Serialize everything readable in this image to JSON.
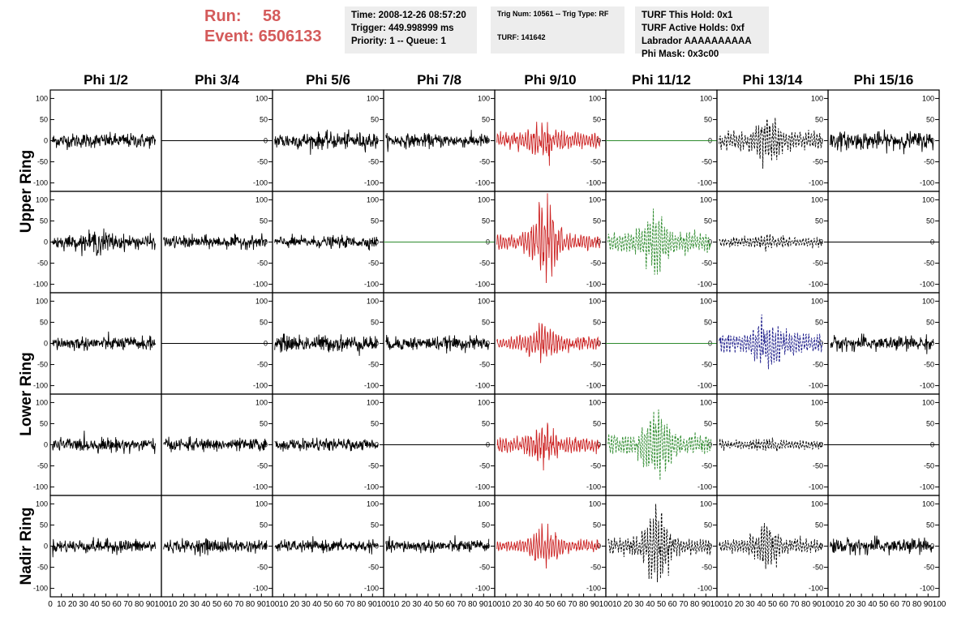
{
  "header": {
    "run_label": "Run:",
    "run_value": "58",
    "event_label": "Event:",
    "event_value": "6506133",
    "time": "Time: 2008-12-26 08:57:20",
    "trigger": "Trigger: 449.998999 ms",
    "priority": "Priority: 1 -- Queue: 1",
    "trig_num": "Trig Num: 10561 -- Trig Type: RF",
    "turf": "TURF: 141642",
    "turf_hold": "TURF This Hold: 0x1",
    "turf_active": "TURF Active Holds: 0xf",
    "labrador": "Labrador AAAAAAAAAA",
    "phi_mask": "Phi Mask: 0x3c00"
  },
  "chart_data": {
    "type": "line",
    "columns": [
      "Phi 1/2",
      "Phi 3/4",
      "Phi 5/6",
      "Phi 7/8",
      "Phi 9/10",
      "Phi 11/12",
      "Phi 13/14",
      "Phi 15/16"
    ],
    "ring_labels": [
      {
        "label": "Upper Ring",
        "rows": [
          0,
          1
        ]
      },
      {
        "label": "Lower Ring",
        "rows": [
          2,
          3
        ]
      },
      {
        "label": "Nadir Ring",
        "rows": [
          4
        ]
      }
    ],
    "ylim": [
      -120,
      120
    ],
    "yticks": [
      -100,
      -50,
      0,
      50,
      100
    ],
    "xlim": [
      0,
      100
    ],
    "xticks": [
      0,
      10,
      20,
      30,
      40,
      50,
      60,
      70,
      80,
      90,
      100
    ],
    "colors": {
      "normal": "#000000",
      "triggered": "#cc2222",
      "masked": "#2e8b2e",
      "dashed_blue": "#1c1c8a",
      "dashed_green": "#2e8b2e"
    },
    "panels": [
      [
        {
          "style": "normal",
          "amp": 14,
          "ev": 0
        },
        {
          "style": "flat",
          "amp": 0,
          "ev": 0,
          "color": "normal"
        },
        {
          "style": "normal",
          "amp": 16,
          "ev": 0
        },
        {
          "style": "normal",
          "amp": 13,
          "ev": 0
        },
        {
          "style": "triggered",
          "amp": 18,
          "ev": 40
        },
        {
          "style": "flat",
          "amp": 0,
          "ev": 0,
          "color": "masked"
        },
        {
          "style": "dashed",
          "amp": 20,
          "ev": 55,
          "color": "normal"
        },
        {
          "style": "normal",
          "amp": 17,
          "ev": 0
        }
      ],
      [
        {
          "style": "normal",
          "amp": 13,
          "ev": 25
        },
        {
          "style": "normal",
          "amp": 12,
          "ev": 0
        },
        {
          "style": "normal",
          "amp": 11,
          "ev": 0
        },
        {
          "style": "flat",
          "amp": 0,
          "ev": 0,
          "color": "masked"
        },
        {
          "style": "triggered",
          "amp": 16,
          "ev": 95
        },
        {
          "style": "dashed",
          "amp": 22,
          "ev": 65,
          "color": "dashed_green"
        },
        {
          "style": "dashed",
          "amp": 10,
          "ev": 18,
          "color": "normal"
        },
        {
          "style": "flat",
          "amp": 0,
          "ev": 0,
          "color": "normal"
        }
      ],
      [
        {
          "style": "normal",
          "amp": 13,
          "ev": 0
        },
        {
          "style": "flat",
          "amp": 0,
          "ev": 0,
          "color": "normal"
        },
        {
          "style": "normal",
          "amp": 16,
          "ev": 0
        },
        {
          "style": "normal",
          "amp": 13,
          "ev": 0
        },
        {
          "style": "triggered",
          "amp": 15,
          "ev": 45
        },
        {
          "style": "flat",
          "amp": 0,
          "ev": 0,
          "color": "masked"
        },
        {
          "style": "dashed",
          "amp": 20,
          "ev": 60,
          "color": "dashed_blue"
        },
        {
          "style": "normal",
          "amp": 14,
          "ev": 0
        }
      ],
      [
        {
          "style": "normal",
          "amp": 13,
          "ev": 0
        },
        {
          "style": "normal",
          "amp": 12,
          "ev": 0
        },
        {
          "style": "normal",
          "amp": 11,
          "ev": 0
        },
        {
          "style": "flat",
          "amp": 0,
          "ev": 0,
          "color": "normal"
        },
        {
          "style": "triggered",
          "amp": 17,
          "ev": 50
        },
        {
          "style": "dashed",
          "amp": 22,
          "ev": 78,
          "color": "dashed_green"
        },
        {
          "style": "dashed",
          "amp": 10,
          "ev": 15,
          "color": "normal"
        },
        {
          "style": "flat",
          "amp": 0,
          "ev": 0,
          "color": "normal"
        }
      ],
      [
        {
          "style": "normal",
          "amp": 13,
          "ev": 0
        },
        {
          "style": "normal",
          "amp": 12,
          "ev": 15
        },
        {
          "style": "normal",
          "amp": 11,
          "ev": 0
        },
        {
          "style": "normal",
          "amp": 12,
          "ev": 0
        },
        {
          "style": "triggered",
          "amp": 13,
          "ev": 50
        },
        {
          "style": "dashed",
          "amp": 18,
          "ev": 85,
          "color": "normal"
        },
        {
          "style": "dashed",
          "amp": 15,
          "ev": 55,
          "color": "normal"
        },
        {
          "style": "normal",
          "amp": 15,
          "ev": 0
        }
      ]
    ]
  }
}
